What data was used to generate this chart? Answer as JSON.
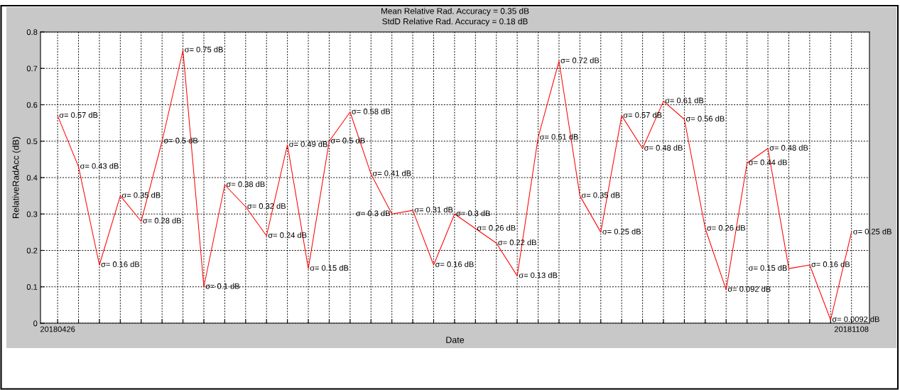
{
  "chart_data": {
    "type": "line",
    "title": "Mean Relative Rad. Accuracy = 0.35 dB",
    "subtitle": "StdD Relative Rad. Accuracy = 0.18 dB",
    "xlabel": "Date",
    "ylabel": "RelativeRadAcc (dB)",
    "categories": [
      "20180426",
      null,
      null,
      null,
      null,
      null,
      null,
      null,
      null,
      null,
      null,
      null,
      null,
      null,
      null,
      null,
      null,
      null,
      null,
      null,
      null,
      null,
      null,
      null,
      null,
      null,
      null,
      null,
      null,
      null,
      null,
      null,
      null,
      null,
      null,
      null,
      null,
      null,
      "20181108"
    ],
    "series": [
      {
        "color": "#ff0000",
        "values": [
          0.57,
          0.43,
          0.16,
          0.35,
          0.28,
          0.5,
          0.75,
          0.1,
          0.38,
          0.32,
          0.24,
          0.49,
          0.15,
          0.5,
          0.58,
          0.41,
          0.3,
          0.31,
          0.16,
          0.3,
          0.26,
          0.22,
          0.13,
          0.51,
          0.72,
          0.35,
          0.25,
          0.57,
          0.48,
          0.61,
          0.56,
          0.26,
          0.092,
          0.44,
          0.48,
          0.15,
          0.16,
          0.0092,
          0.25
        ],
        "value_labels": [
          "σ= 0.57 dB",
          "σ= 0.43 dB",
          "σ= 0.16 dB",
          "σ= 0.35 dB",
          "σ= 0.28 dB",
          "σ= 0.5 dB",
          "σ= 0.75 dB",
          "σ= 0.1 dB",
          "σ= 0.38 dB",
          "σ= 0.32 dB",
          "σ= 0.24 dB",
          "σ= 0.49 dB",
          "σ= 0.15 dB",
          "σ= 0.5 dB",
          "σ= 0.58 dB",
          "σ= 0.41 dB",
          "σ= 0.3 dB",
          "σ= 0.31 dB",
          "σ= 0.16 dB",
          "σ= 0.3 dB",
          "σ= 0.26 dB",
          "σ= 0.22 dB",
          "σ= 0.13 dB",
          "σ= 0.51 dB",
          "σ= 0.72 dB",
          "σ= 0.35 dB",
          "σ= 0.25 dB",
          "σ= 0.57 dB",
          "σ= 0.48 dB",
          "σ= 0.61 dB",
          "σ= 0.56 dB",
          "σ= 0.26 dB",
          "σ= 0.092 dB",
          "σ= 0.44 dB",
          "σ= 0.48 dB",
          "σ= 0.15 dB",
          "σ= 0.16 dB",
          "σ= 0.0092 dB",
          "σ= 0.25 dB"
        ]
      }
    ],
    "ylim": [
      0,
      0.8
    ],
    "yticks": [
      0,
      0.1,
      0.2,
      0.3,
      0.4,
      0.5,
      0.6,
      0.7,
      0.8
    ],
    "grid": true,
    "marker": "none",
    "line_style": "solid"
  }
}
